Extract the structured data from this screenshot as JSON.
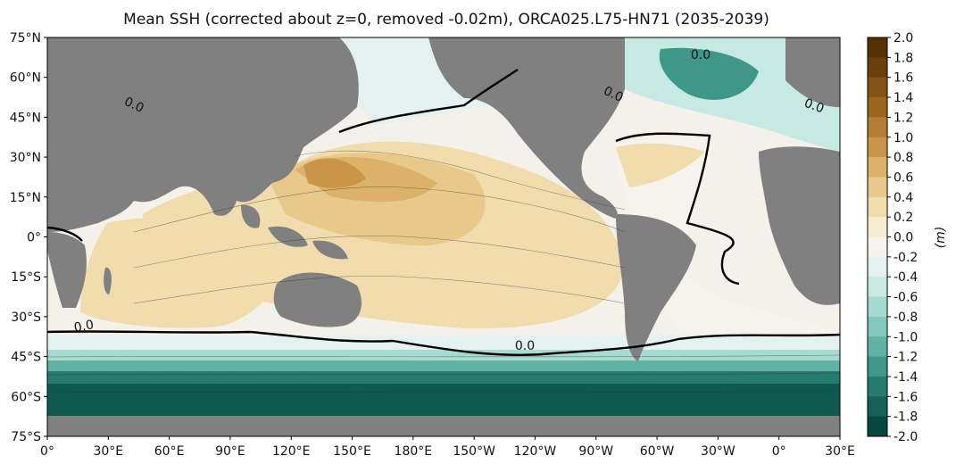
{
  "title": "Mean SSH (corrected about z=0, removed -0.02m), ORCA025.L75-HN71 (2035-2039)",
  "xticks": [
    "0°",
    "30°E",
    "60°E",
    "90°E",
    "120°E",
    "150°E",
    "180°E",
    "150°W",
    "120°W",
    "90°W",
    "60°W",
    "30°W",
    "0°",
    "30°E"
  ],
  "yticks": [
    "75°N",
    "60°N",
    "45°N",
    "30°N",
    "15°N",
    "0°",
    "15°S",
    "30°S",
    "45°S",
    "60°S",
    "75°S"
  ],
  "contour_labels": [
    "0.0",
    "0.0",
    "0.0",
    "0.0",
    "0.0",
    "0.0"
  ],
  "colorbar": {
    "unit_label": "(m)",
    "ticks": [
      "2.0",
      "1.8",
      "1.6",
      "1.4",
      "1.2",
      "1.0",
      "0.8",
      "0.6",
      "0.4",
      "0.2",
      "0.0",
      "-0.2",
      "-0.4",
      "-0.6",
      "-0.8",
      "-1.0",
      "-1.2",
      "-1.4",
      "-1.6",
      "-1.8",
      "-2.0"
    ],
    "colors": [
      "#543005",
      "#6b3f0c",
      "#845214",
      "#9c6620",
      "#b47c32",
      "#c99548",
      "#dcb26a",
      "#e8c98b",
      "#f1dcad",
      "#f7ebd1",
      "#f5f3ec",
      "#e3f2ef",
      "#c6e9e3",
      "#a6dbd1",
      "#82c9bc",
      "#5fb2a4",
      "#3f978a",
      "#257b70",
      "#136157",
      "#074940"
    ]
  },
  "colors": {
    "land": "#808080",
    "frame": "#000000"
  }
}
